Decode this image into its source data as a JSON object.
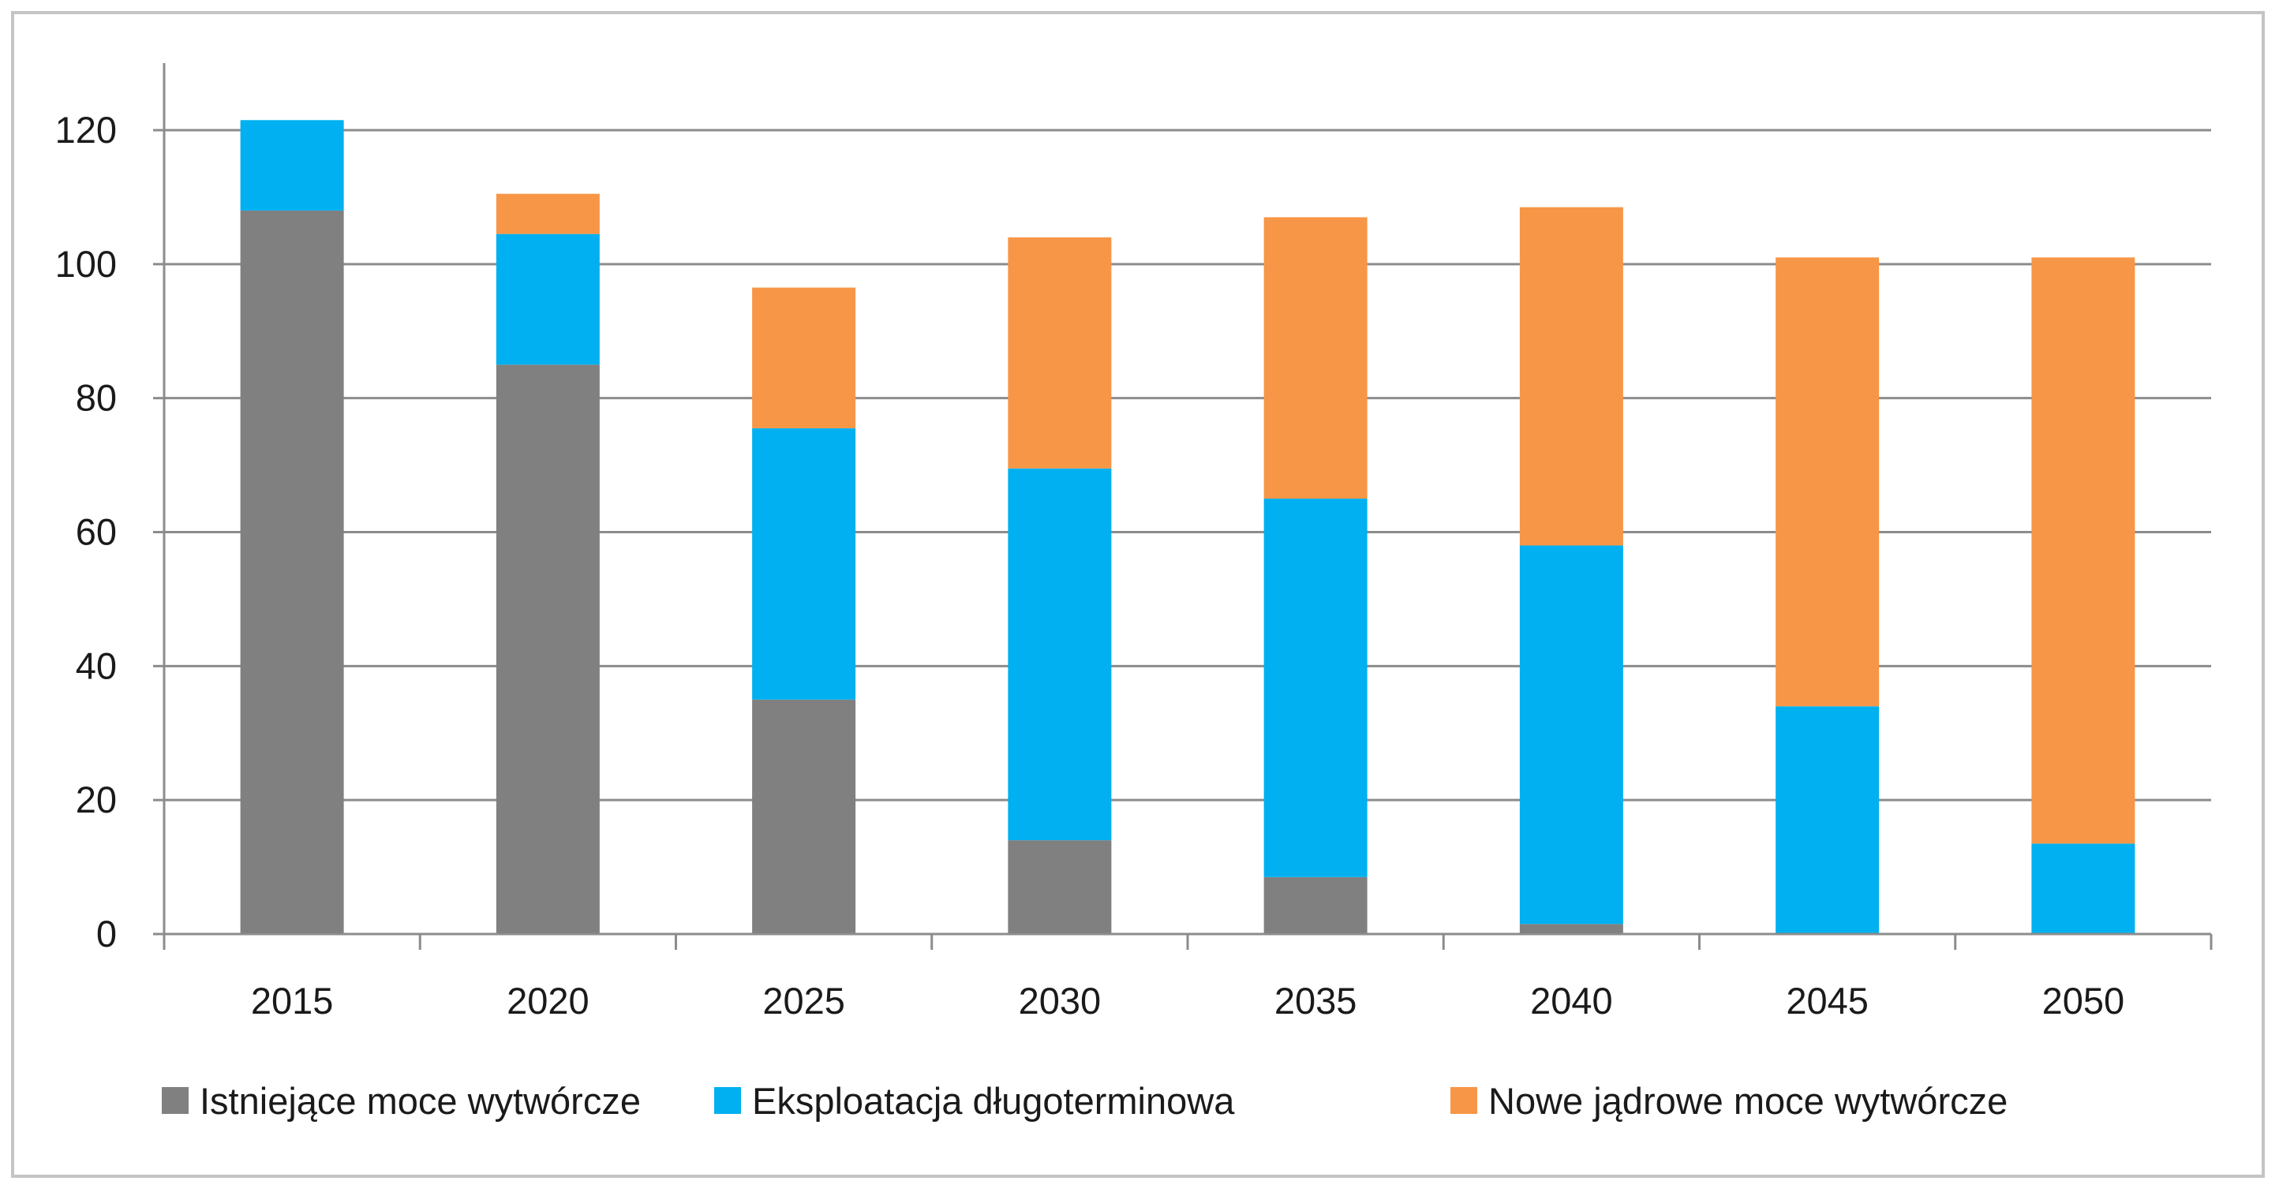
{
  "chart_data": {
    "type": "bar",
    "stacked": true,
    "title": "",
    "xlabel": "",
    "ylabel": "",
    "categories": [
      "2015",
      "2020",
      "2025",
      "2030",
      "2035",
      "2040",
      "2045",
      "2050"
    ],
    "series": [
      {
        "name": "Istniejące moce wytwórcze",
        "color": "#808080",
        "values": [
          108,
          85,
          35,
          14,
          8.5,
          1.5,
          0,
          0
        ]
      },
      {
        "name": "Eksploatacja długoterminowa",
        "color": "#00b0f0",
        "values": [
          13.5,
          19.5,
          40.5,
          55.5,
          56.5,
          56.5,
          34,
          13.5
        ]
      },
      {
        "name": "Nowe jądrowe moce wytwórcze",
        "color": "#f79646",
        "values": [
          0,
          6,
          21,
          34.5,
          42,
          50.5,
          67,
          87.5
        ]
      }
    ],
    "ylim": [
      0,
      120
    ],
    "yticks": [
      0,
      20,
      40,
      60,
      80,
      100,
      120
    ],
    "grid": true,
    "legend_position": "bottom"
  }
}
